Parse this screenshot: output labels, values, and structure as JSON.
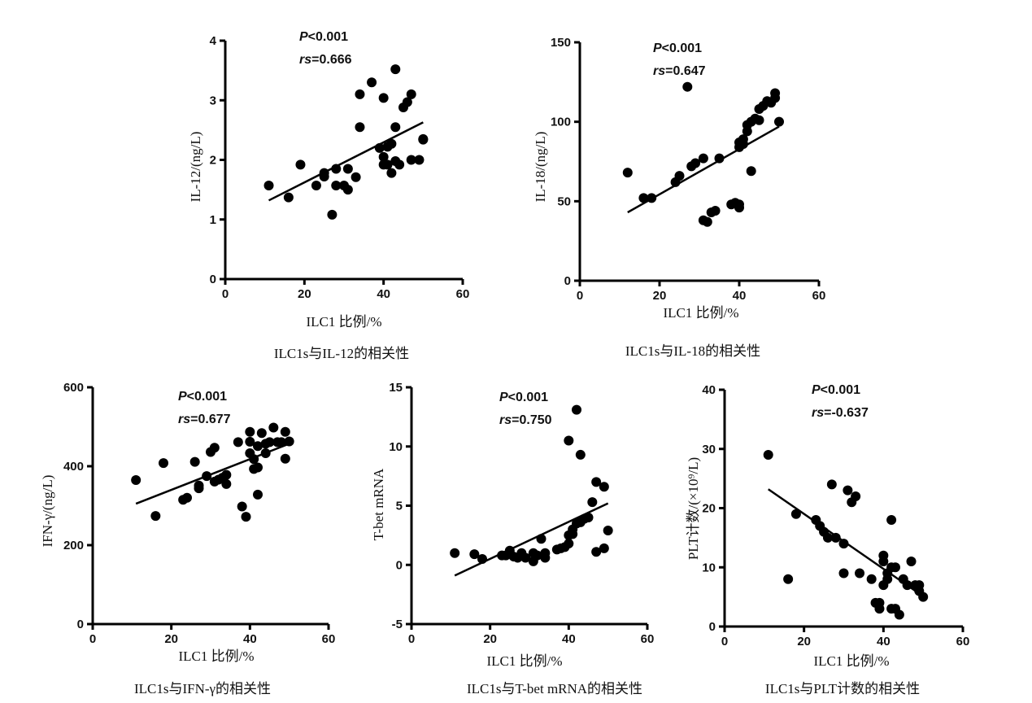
{
  "chart_data": [
    {
      "type": "scatter",
      "id": "il12",
      "title": "ILC1s与IL-12的相关性",
      "xlabel": "ILC1 比例/%",
      "ylabel": "IL-12/(ng/L)",
      "xlim": [
        0,
        60
      ],
      "ylim": [
        0,
        4
      ],
      "xticks": [
        "0",
        "20",
        "40",
        "60"
      ],
      "yticks": [
        "0",
        "1",
        "2",
        "3",
        "4"
      ],
      "grid": false,
      "p_text": "P<0.001",
      "p_prefix": "P",
      "p_rest": "<0.001",
      "rs_text": "rs=0.666",
      "rs_prefix": "rs",
      "rs_rest": "=0.666",
      "trend": {
        "x": [
          11,
          50
        ],
        "y": [
          1.32,
          2.63
        ]
      },
      "points": [
        [
          11,
          1.57
        ],
        [
          16,
          1.37
        ],
        [
          19,
          1.92
        ],
        [
          23,
          1.57
        ],
        [
          25,
          1.72
        ],
        [
          25,
          1.78
        ],
        [
          27,
          1.08
        ],
        [
          28,
          1.57
        ],
        [
          28,
          1.85
        ],
        [
          30,
          1.57
        ],
        [
          31,
          1.5
        ],
        [
          31,
          1.85
        ],
        [
          33,
          1.71
        ],
        [
          34,
          3.1
        ],
        [
          34,
          2.55
        ],
        [
          37,
          3.3
        ],
        [
          39,
          2.2
        ],
        [
          40,
          3.04
        ],
        [
          40,
          1.92
        ],
        [
          40,
          2.05
        ],
        [
          41,
          2.22
        ],
        [
          41,
          1.92
        ],
        [
          42,
          2.27
        ],
        [
          42,
          1.78
        ],
        [
          43,
          3.52
        ],
        [
          43,
          2.55
        ],
        [
          43,
          1.98
        ],
        [
          44,
          1.92
        ],
        [
          45,
          2.88
        ],
        [
          46,
          2.97
        ],
        [
          47,
          3.1
        ],
        [
          47,
          2.0
        ],
        [
          49,
          2.0
        ],
        [
          50,
          2.35
        ],
        [
          50,
          2.34
        ]
      ]
    },
    {
      "type": "scatter",
      "id": "il18",
      "title": "ILC1s与IL-18的相关性",
      "xlabel": "ILC1 比例/%",
      "ylabel": "IL-18/(ng/L)",
      "xlim": [
        0,
        60
      ],
      "ylim": [
        0,
        150
      ],
      "xticks": [
        "0",
        "20",
        "40",
        "60"
      ],
      "yticks": [
        "0",
        "50",
        "100",
        "150"
      ],
      "grid": false,
      "p_text": "P<0.001",
      "p_prefix": "P",
      "p_rest": "<0.001",
      "rs_text": "rs=0.647",
      "rs_prefix": "rs",
      "rs_rest": "=0.647",
      "trend": {
        "x": [
          12,
          50
        ],
        "y": [
          43,
          97
        ]
      },
      "points": [
        [
          12,
          68
        ],
        [
          16,
          52
        ],
        [
          18,
          52
        ],
        [
          24,
          62
        ],
        [
          25,
          66
        ],
        [
          27,
          122
        ],
        [
          28,
          72
        ],
        [
          29,
          74
        ],
        [
          31,
          77
        ],
        [
          31,
          38
        ],
        [
          32,
          37
        ],
        [
          33,
          43
        ],
        [
          34,
          44
        ],
        [
          35,
          77
        ],
        [
          38,
          48
        ],
        [
          39,
          49
        ],
        [
          40,
          48
        ],
        [
          40,
          46
        ],
        [
          40,
          84
        ],
        [
          40,
          87
        ],
        [
          41,
          86
        ],
        [
          41,
          89
        ],
        [
          42,
          94
        ],
        [
          42,
          98
        ],
        [
          43,
          69
        ],
        [
          43,
          100
        ],
        [
          44,
          102
        ],
        [
          45,
          101
        ],
        [
          45,
          108
        ],
        [
          46,
          110
        ],
        [
          47,
          113
        ],
        [
          48,
          112
        ],
        [
          49,
          118
        ],
        [
          49,
          115
        ],
        [
          50,
          100
        ]
      ]
    },
    {
      "type": "scatter",
      "id": "ifn",
      "title": "ILC1s与IFN-γ的相关性",
      "xlabel": "ILC1 比例/%",
      "ylabel": "IFN-γ/(ng/L)",
      "xlim": [
        0,
        60
      ],
      "ylim": [
        0,
        600
      ],
      "xticks": [
        "0",
        "20",
        "40",
        "60"
      ],
      "yticks": [
        "0",
        "200",
        "400",
        "600"
      ],
      "grid": false,
      "p_text": "P<0.001",
      "p_prefix": "P",
      "p_rest": "<0.001",
      "rs_text": "rs=0.677",
      "rs_prefix": "rs",
      "rs_rest": "=0.677",
      "trend": {
        "x": [
          11,
          50
        ],
        "y": [
          305,
          457
        ]
      },
      "points": [
        [
          11,
          365
        ],
        [
          16,
          274
        ],
        [
          18,
          408
        ],
        [
          23,
          315
        ],
        [
          24,
          320
        ],
        [
          26,
          411
        ],
        [
          27,
          344
        ],
        [
          27,
          351
        ],
        [
          29,
          375
        ],
        [
          30,
          436
        ],
        [
          31,
          447
        ],
        [
          31,
          361
        ],
        [
          32,
          366
        ],
        [
          33,
          371
        ],
        [
          34,
          378
        ],
        [
          34,
          355
        ],
        [
          37,
          461
        ],
        [
          38,
          298
        ],
        [
          39,
          272
        ],
        [
          40,
          433
        ],
        [
          40,
          462
        ],
        [
          40,
          487
        ],
        [
          41,
          393
        ],
        [
          41,
          418
        ],
        [
          42,
          397
        ],
        [
          42,
          451
        ],
        [
          42,
          328
        ],
        [
          43,
          484
        ],
        [
          44,
          457
        ],
        [
          44,
          433
        ],
        [
          45,
          461
        ],
        [
          46,
          498
        ],
        [
          47,
          461
        ],
        [
          48,
          461
        ],
        [
          49,
          419
        ],
        [
          49,
          487
        ],
        [
          50,
          463
        ]
      ]
    },
    {
      "type": "scatter",
      "id": "tbet",
      "title": "ILC1s与T-bet mRNA的相关性",
      "xlabel": "ILC1 比例/%",
      "ylabel": "T-bet mRNA",
      "xlim": [
        0,
        60
      ],
      "ylim": [
        -5,
        15
      ],
      "xticks": [
        "0",
        "20",
        "40",
        "60"
      ],
      "yticks": [
        "-5",
        "0",
        "5",
        "10",
        "15"
      ],
      "grid": false,
      "p_text": "P<0.001",
      "p_prefix": "P",
      "p_rest": "<0.001",
      "rs_text": "rs=0.750",
      "rs_prefix": "rs",
      "rs_rest": "=0.750",
      "trend": {
        "x": [
          11,
          50
        ],
        "y": [
          -0.9,
          5.2
        ]
      },
      "points": [
        [
          11,
          1.0
        ],
        [
          16,
          0.9
        ],
        [
          18,
          0.5
        ],
        [
          23,
          0.8
        ],
        [
          24,
          0.8
        ],
        [
          25,
          1.2
        ],
        [
          26,
          0.7
        ],
        [
          27,
          0.6
        ],
        [
          28,
          1.0
        ],
        [
          29,
          0.6
        ],
        [
          31,
          0.3
        ],
        [
          31,
          1.0
        ],
        [
          32,
          0.8
        ],
        [
          33,
          2.2
        ],
        [
          34,
          1.0
        ],
        [
          34,
          0.6
        ],
        [
          37,
          1.3
        ],
        [
          38,
          1.4
        ],
        [
          39,
          1.5
        ],
        [
          40,
          10.5
        ],
        [
          40,
          2.5
        ],
        [
          40,
          1.8
        ],
        [
          41,
          3.0
        ],
        [
          41,
          2.6
        ],
        [
          42,
          3.5
        ],
        [
          42,
          13.1
        ],
        [
          43,
          9.3
        ],
        [
          43,
          3.6
        ],
        [
          44,
          3.9
        ],
        [
          45,
          4.0
        ],
        [
          46,
          5.3
        ],
        [
          47,
          7.0
        ],
        [
          47,
          1.1
        ],
        [
          49,
          6.6
        ],
        [
          49,
          1.4
        ],
        [
          50,
          2.9
        ]
      ]
    },
    {
      "type": "scatter",
      "id": "plt",
      "title": "ILC1s与PLT计数的相关性",
      "xlabel": "ILC1 比例/%",
      "ylabel": "PLT计数/(×10⁹/L)",
      "xlim": [
        0,
        60
      ],
      "ylim": [
        0,
        40
      ],
      "xticks": [
        "0",
        "20",
        "40",
        "60"
      ],
      "yticks": [
        "0",
        "10",
        "20",
        "30",
        "40"
      ],
      "grid": false,
      "p_text": "P<0.001",
      "p_prefix": "P",
      "p_rest": "<0.001",
      "rs_text": "rs=-0.637",
      "rs_prefix": "rs",
      "rs_rest": "=-0.637",
      "trend": {
        "x": [
          11,
          50
        ],
        "y": [
          23.2,
          5.1
        ]
      },
      "points": [
        [
          11,
          29
        ],
        [
          16,
          8
        ],
        [
          18,
          19
        ],
        [
          23,
          18
        ],
        [
          24,
          17
        ],
        [
          25,
          16
        ],
        [
          26,
          15
        ],
        [
          27,
          24
        ],
        [
          28,
          15
        ],
        [
          30,
          14
        ],
        [
          30,
          9
        ],
        [
          31,
          23
        ],
        [
          32,
          21
        ],
        [
          33,
          22
        ],
        [
          34,
          9
        ],
        [
          37,
          8
        ],
        [
          38,
          4
        ],
        [
          39,
          3
        ],
        [
          39,
          4
        ],
        [
          40,
          7
        ],
        [
          40,
          12
        ],
        [
          40,
          11
        ],
        [
          41,
          9
        ],
        [
          41,
          8
        ],
        [
          42,
          18
        ],
        [
          42,
          10
        ],
        [
          42,
          3
        ],
        [
          43,
          10
        ],
        [
          43,
          3
        ],
        [
          44,
          2
        ],
        [
          45,
          8
        ],
        [
          46,
          7
        ],
        [
          47,
          11
        ],
        [
          48,
          7
        ],
        [
          49,
          7
        ],
        [
          49,
          6
        ],
        [
          50,
          5
        ]
      ]
    }
  ]
}
